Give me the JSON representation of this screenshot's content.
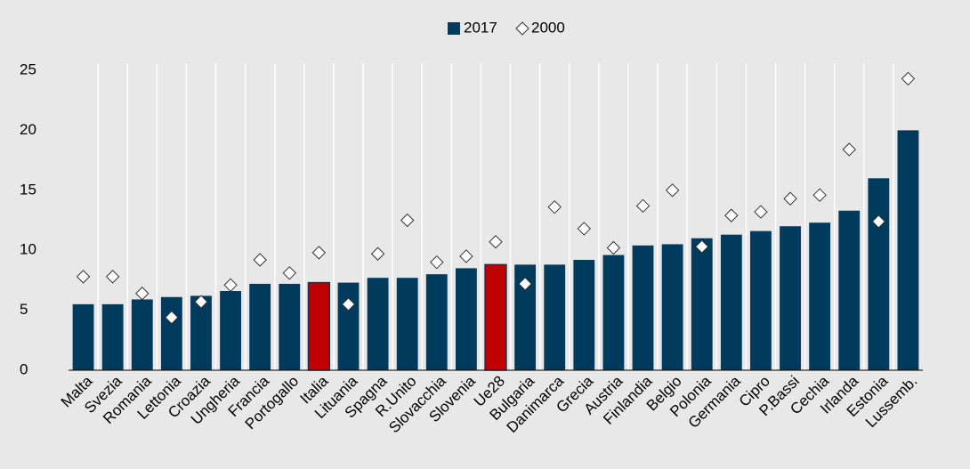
{
  "chart_data": {
    "type": "bar",
    "categories": [
      "Malta",
      "Svezia",
      "Romania",
      "Lettonia",
      "Croazia",
      "Ungheria",
      "Francia",
      "Portogallo",
      "Italia",
      "Lituania",
      "Spagna",
      "R.Unito",
      "Slovacchia",
      "Slovenia",
      "Ue28",
      "Bulgaria",
      "Danimarca",
      "Grecia",
      "Austria",
      "Finlandia",
      "Belgio",
      "Polonia",
      "Germania",
      "Cipro",
      "P.Bassi",
      "Cechia",
      "Irlanda",
      "Estonia",
      "Lussemb."
    ],
    "series": [
      {
        "name": "2017",
        "color": "#003a5d",
        "colors": [
          "#003a5d",
          "#003a5d",
          "#003a5d",
          "#003a5d",
          "#003a5d",
          "#003a5d",
          "#003a5d",
          "#003a5d",
          "#c00000",
          "#003a5d",
          "#003a5d",
          "#003a5d",
          "#003a5d",
          "#003a5d",
          "#c00000",
          "#003a5d",
          "#003a5d",
          "#003a5d",
          "#003a5d",
          "#003a5d",
          "#003a5d",
          "#003a5d",
          "#003a5d",
          "#003a5d",
          "#003a5d",
          "#003a5d",
          "#003a5d",
          "#003a5d",
          "#003a5d"
        ],
        "values": [
          5.5,
          5.5,
          5.9,
          6.1,
          6.2,
          6.6,
          7.2,
          7.2,
          7.3,
          7.3,
          7.7,
          7.7,
          8.0,
          8.5,
          8.8,
          8.8,
          8.8,
          9.2,
          9.6,
          10.4,
          10.5,
          11.0,
          11.3,
          11.6,
          12.0,
          12.3,
          13.3,
          16.0,
          20.0
        ]
      },
      {
        "name": "2000",
        "color": "#ffffff",
        "marker": "diamond",
        "values": [
          7.8,
          7.8,
          6.4,
          4.4,
          5.7,
          7.1,
          9.2,
          8.1,
          9.8,
          5.5,
          9.7,
          12.5,
          9.0,
          9.5,
          10.7,
          7.2,
          13.6,
          11.8,
          10.2,
          13.7,
          15.0,
          10.3,
          12.9,
          13.2,
          14.3,
          14.6,
          18.4,
          12.4,
          24.3
        ]
      }
    ],
    "ylim": [
      0,
      25
    ],
    "yticks": [
      0,
      5,
      10,
      15,
      20,
      25
    ],
    "legend": "top"
  }
}
